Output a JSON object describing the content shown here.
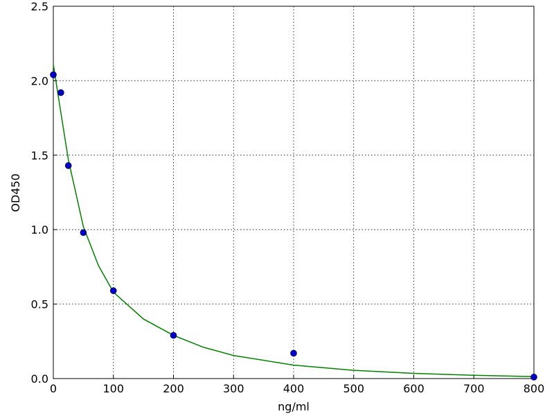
{
  "chart_data": {
    "type": "scatter",
    "x_label": "ng/ml",
    "y_label": "OD450",
    "series": [
      {
        "type": "scatter",
        "color": "#0000cc",
        "x": [
          0,
          12.5,
          25,
          50,
          100,
          200,
          400,
          800
        ],
        "values": [
          2.04,
          1.92,
          1.43,
          0.98,
          0.59,
          0.29,
          0.17,
          0.01
        ]
      },
      {
        "type": "line",
        "color": "#008000",
        "x": [
          0,
          10,
          25,
          50,
          75,
          100,
          150,
          200,
          250,
          300,
          400,
          500,
          600,
          700,
          800
        ],
        "values": [
          2.11,
          1.85,
          1.47,
          1.02,
          0.76,
          0.58,
          0.4,
          0.29,
          0.21,
          0.155,
          0.09,
          0.055,
          0.035,
          0.022,
          0.013
        ]
      }
    ],
    "xlim": [
      0,
      800
    ],
    "xticks": [
      0,
      100,
      200,
      300,
      400,
      500,
      600,
      700,
      800
    ],
    "ylim": [
      0,
      2.5
    ],
    "yticks": [
      {
        "value": 0,
        "label": "0.0"
      },
      0.5,
      {
        "value": 1,
        "label": "1.0"
      },
      1.5,
      {
        "value": 2,
        "label": "2.0"
      },
      2.5
    ],
    "grid": true
  }
}
